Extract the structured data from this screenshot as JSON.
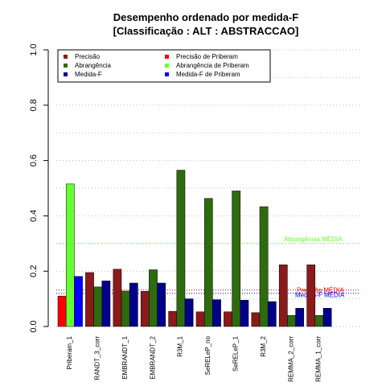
{
  "chart_data": {
    "type": "bar",
    "title": "Desempenho ordenado por medida-F",
    "subtitle": "[Classificação : ALT : ABSTRACCAO]",
    "ylim": [
      0,
      1
    ],
    "yticks": [
      "0.0",
      "0.2",
      "0.4",
      "0.6",
      "0.8",
      "1.0"
    ],
    "grid": true,
    "legend_position": "top-left",
    "legend": [
      {
        "label": "Precisão",
        "color": "#8b1a1a"
      },
      {
        "label": "Abrangência",
        "color": "#2e6b0e"
      },
      {
        "label": "Medida-F",
        "color": "#00008b"
      },
      {
        "label": "Precisão  de  Priberam",
        "color": "#ff0000"
      },
      {
        "label": "Abrangência  de  Priberam",
        "color": "#66ff33"
      },
      {
        "label": "Medida-F  de  Priberam",
        "color": "#0000ff"
      }
    ],
    "categories": [
      "Priberam_1",
      "RANDT_3_corr",
      "EMBRANDT_1",
      "EMBRANDT_2",
      "R3M_1",
      "SeRELeP_no",
      "SeRELeP_1",
      "R3M_2",
      "REMMA_2_corr",
      "REMMA_1_corr"
    ],
    "series": [
      {
        "name": "Precisão",
        "values": [
          0.11,
          0.195,
          0.207,
          0.127,
          0.055,
          0.053,
          0.053,
          0.05,
          0.223,
          0.223
        ]
      },
      {
        "name": "Abrangência",
        "values": [
          0.515,
          0.143,
          0.128,
          0.205,
          0.565,
          0.463,
          0.49,
          0.433,
          0.04,
          0.04
        ]
      },
      {
        "name": "Medida-F",
        "values": [
          0.181,
          0.165,
          0.157,
          0.157,
          0.1,
          0.097,
          0.095,
          0.09,
          0.066,
          0.066
        ]
      }
    ],
    "highlight_index": 0,
    "highlight_colors": [
      "#ff0000",
      "#66ff33",
      "#0000ff"
    ],
    "series_colors": [
      "#8b1a1a",
      "#2e6b0e",
      "#00008b"
    ],
    "reference_lines": [
      {
        "label": "Abrangência MÉDIA",
        "value": 0.3,
        "color": "#66ff33"
      },
      {
        "label": "Precisão MÉDIA",
        "value": 0.132,
        "color": "#ff0000"
      },
      {
        "label": "Medida-F MÉDIA",
        "value": 0.12,
        "color": "#0000ff"
      }
    ]
  }
}
